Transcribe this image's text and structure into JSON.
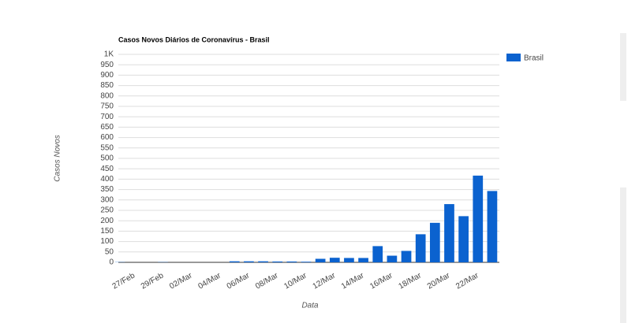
{
  "chart_data": {
    "type": "bar",
    "title": "Casos Novos Diários de Coronavírus - Brasil",
    "x_label": "Data",
    "y_label": "Casos Novos",
    "categories": [
      null,
      "27/Feb",
      null,
      "29/Feb",
      null,
      "02/Mar",
      null,
      "04/Mar",
      null,
      "06/Mar",
      null,
      "08/Mar",
      null,
      "10/Mar",
      null,
      "12/Mar",
      null,
      "14/Mar",
      null,
      "16/Mar",
      null,
      "18/Mar",
      null,
      "20/Mar",
      null,
      "22/Mar",
      null
    ],
    "series": [
      {
        "name": "Brasil",
        "color": "#0b62cf",
        "values": [
          1,
          0,
          0,
          1,
          0,
          0,
          0,
          0,
          5,
          5,
          5,
          4,
          4,
          3,
          17,
          22,
          21,
          21,
          78,
          32,
          55,
          135,
          190,
          280,
          222,
          417,
          343
        ]
      }
    ],
    "ylim": [
      0,
      1000
    ],
    "yticks": [
      0,
      50,
      100,
      150,
      200,
      250,
      300,
      350,
      400,
      450,
      500,
      550,
      600,
      650,
      700,
      750,
      800,
      850,
      900,
      950,
      {
        "value": 1000,
        "label": "1K"
      }
    ],
    "grid": true,
    "legend": "right"
  }
}
